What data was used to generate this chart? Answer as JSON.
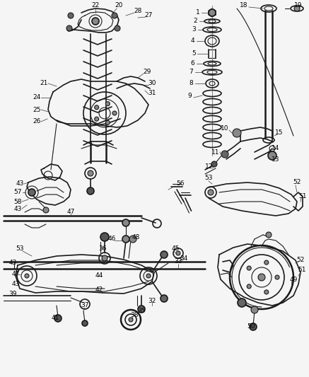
{
  "bg_color": "#f5f5f5",
  "line_color": "#1a1a1a",
  "label_color": "#000000",
  "fig_width": 4.37,
  "fig_height": 5.33,
  "dpi": 100
}
